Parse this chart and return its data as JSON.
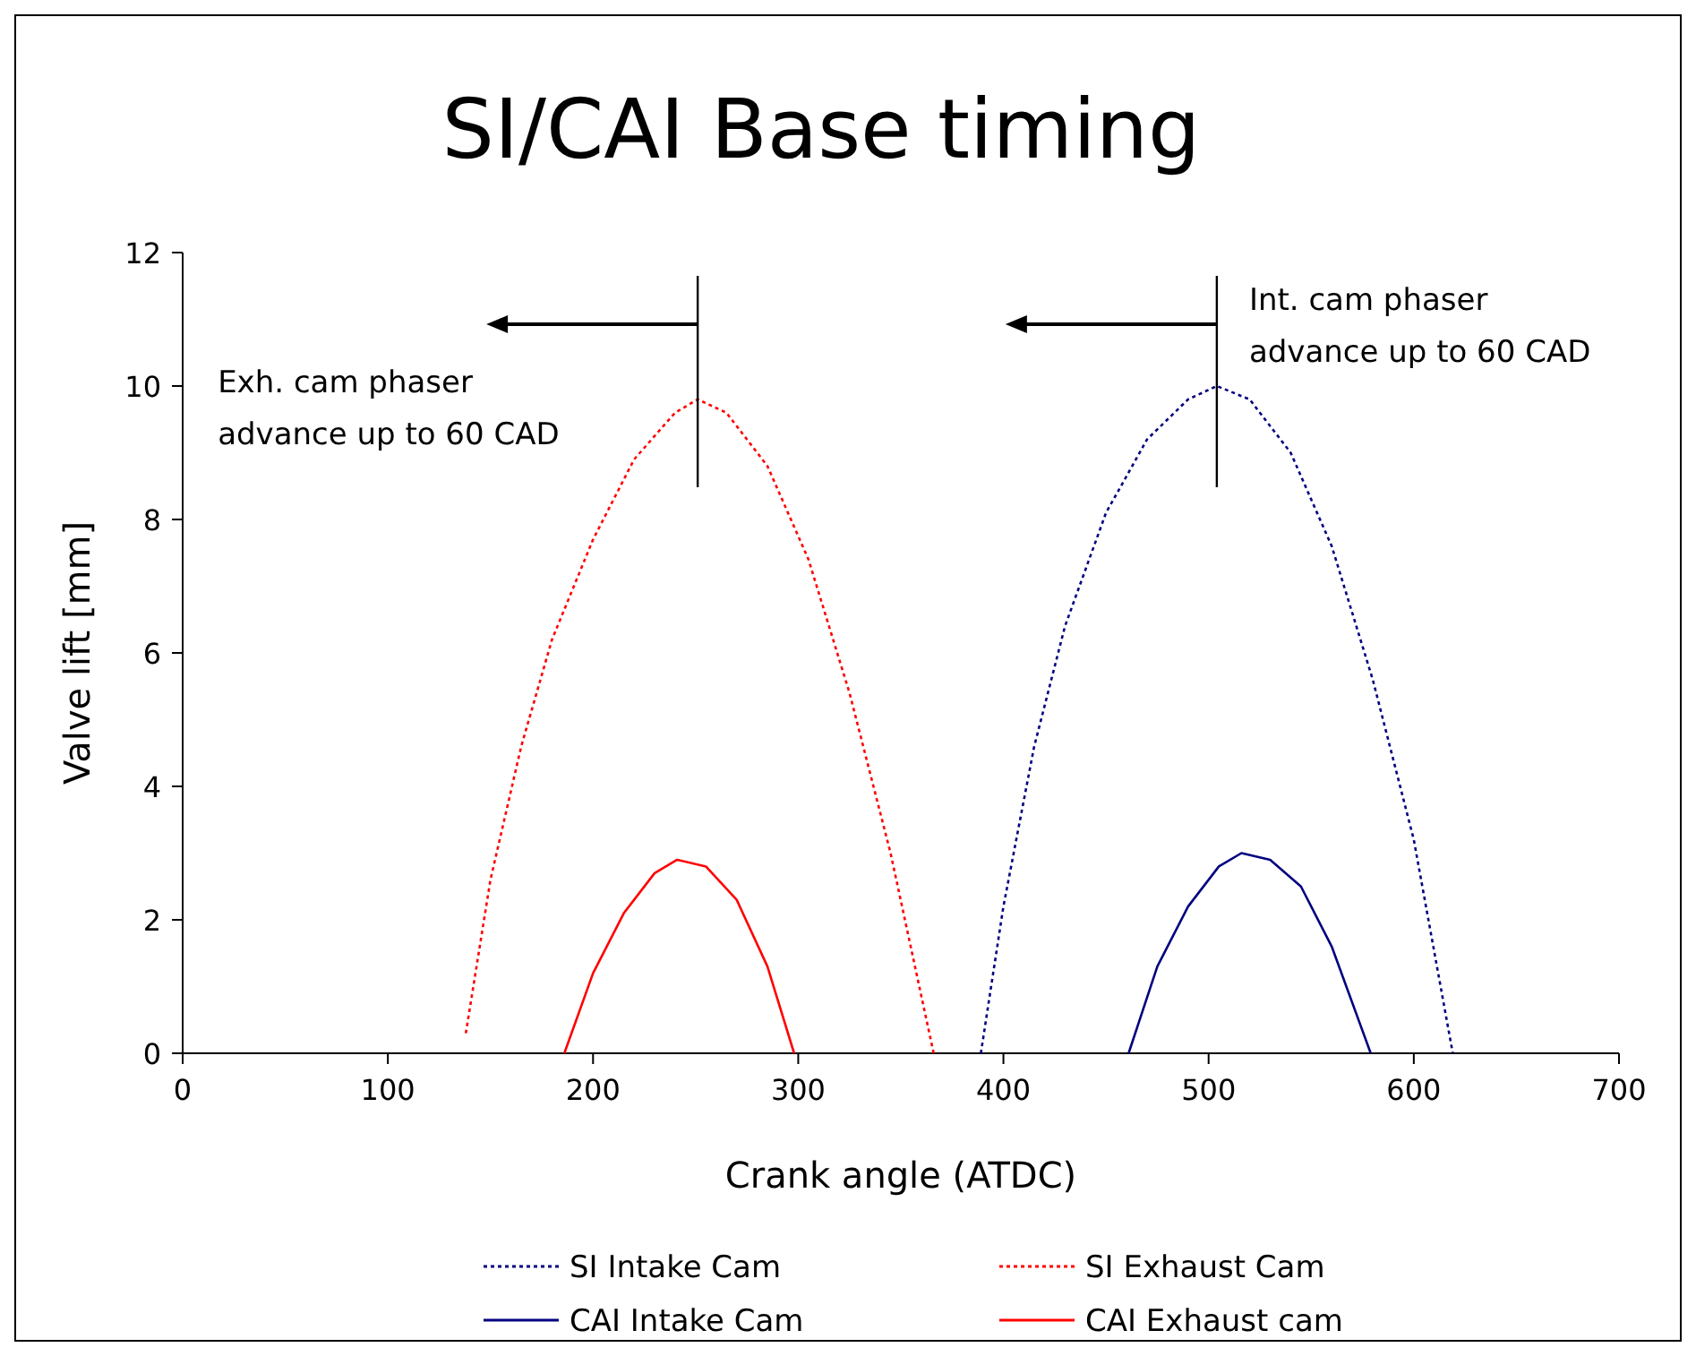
{
  "chart_data": {
    "type": "line",
    "title": "SI/CAI Base timing",
    "xlabel": "Crank angle (ATDC)",
    "ylabel": "Valve lift [mm]",
    "xlim": [
      0,
      700
    ],
    "xticks": [
      0,
      100,
      200,
      300,
      400,
      500,
      600,
      700
    ],
    "ylim": [
      0,
      12
    ],
    "yticks": [
      0,
      2,
      4,
      6,
      8,
      10,
      12
    ],
    "legend": "bottom",
    "marker": "none",
    "series": [
      {
        "name": "SI Intake Cam",
        "color": "#000080",
        "line_style": "dotted",
        "x": [
          389,
          400,
          415,
          430,
          450,
          470,
          490,
          504,
          520,
          540,
          560,
          580,
          600,
          619
        ],
        "values": [
          0,
          2.2,
          4.6,
          6.4,
          8.1,
          9.2,
          9.8,
          10,
          9.8,
          9.0,
          7.6,
          5.6,
          3.2,
          0
        ]
      },
      {
        "name": "SI Exhaust Cam",
        "color": "#ff0000",
        "line_style": "dotted",
        "x": [
          138,
          150,
          165,
          180,
          200,
          220,
          240,
          251,
          265,
          285,
          305,
          325,
          345,
          366
        ],
        "values": [
          0.3,
          2.6,
          4.6,
          6.2,
          7.7,
          8.9,
          9.6,
          9.8,
          9.6,
          8.8,
          7.4,
          5.4,
          3.0,
          0
        ]
      },
      {
        "name": "CAI Intake Cam",
        "color": "#000080",
        "line_style": "solid",
        "x": [
          461,
          475,
          490,
          505,
          516,
          530,
          545,
          560,
          579
        ],
        "values": [
          0,
          1.3,
          2.2,
          2.8,
          3.0,
          2.9,
          2.5,
          1.6,
          0
        ]
      },
      {
        "name": "CAI Exhaust cam",
        "color": "#ff0000",
        "line_style": "solid",
        "x": [
          186,
          200,
          215,
          230,
          241,
          255,
          270,
          285,
          298
        ],
        "values": [
          0,
          1.2,
          2.1,
          2.7,
          2.9,
          2.8,
          2.3,
          1.3,
          0
        ]
      }
    ],
    "annotations": [
      "Exh. cam phaser\nadvance up to 60 CAD",
      "Int. cam phaser\nadvance up to 60 CAD"
    ]
  }
}
